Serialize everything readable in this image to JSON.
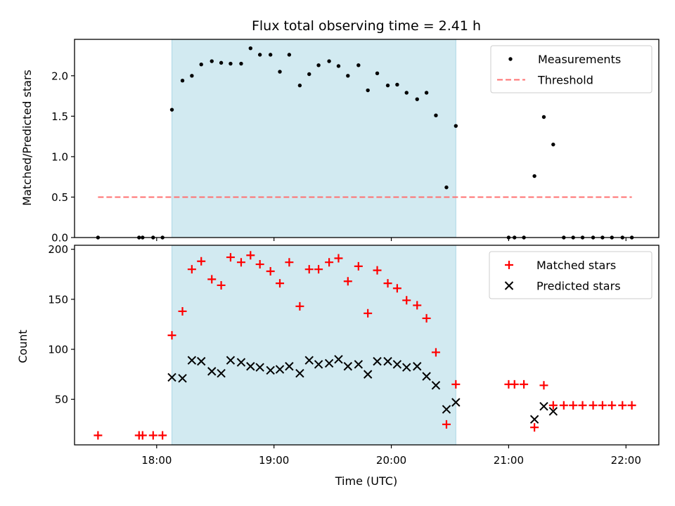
{
  "chart_data": [
    {
      "type": "scatter",
      "title": "Flux total observing time = 2.41 h",
      "xlabel": "",
      "ylabel": "Matched/Predicted stars",
      "x_axis": "time (UTC, hours)",
      "xlim": [
        17.3,
        22.28
      ],
      "ylim": [
        0,
        2.45
      ],
      "x_ticks": [
        18,
        19,
        20,
        21,
        22
      ],
      "y_ticks": [
        0,
        0.5,
        1.0,
        1.5,
        2.0
      ],
      "y_tick_labels": [
        "0.0",
        "0.5",
        "1.0",
        "1.5",
        "2.0"
      ],
      "observing_window": [
        18.13,
        20.55
      ],
      "shade_color": "#add8e6",
      "threshold": {
        "name": "Threshold",
        "value": 0.5,
        "x": [
          17.5,
          22.05
        ],
        "color": "#ff7070",
        "style": "dashed"
      },
      "legend_position": "top-right",
      "legend": [
        "Measurements",
        "Threshold"
      ],
      "series": [
        {
          "name": "Measurements",
          "color": "#000000",
          "marker": "dot",
          "x": [
            17.5,
            17.85,
            17.88,
            17.97,
            18.05,
            18.13,
            18.22,
            18.3,
            18.38,
            18.47,
            18.55,
            18.63,
            18.72,
            18.8,
            18.88,
            18.97,
            19.05,
            19.13,
            19.22,
            19.3,
            19.38,
            19.47,
            19.55,
            19.63,
            19.72,
            19.8,
            19.88,
            19.97,
            20.05,
            20.13,
            20.22,
            20.3,
            20.38,
            20.47,
            20.55,
            21.0,
            21.05,
            21.13,
            21.22,
            21.3,
            21.38,
            21.47,
            21.55,
            21.63,
            21.72,
            21.8,
            21.88,
            21.97,
            22.05
          ],
          "y": [
            0.0,
            0.0,
            0.0,
            0.0,
            0.0,
            1.58,
            1.94,
            2.0,
            2.14,
            2.18,
            2.16,
            2.15,
            2.15,
            2.34,
            2.26,
            2.26,
            2.05,
            2.26,
            1.88,
            2.02,
            2.13,
            2.18,
            2.12,
            2.0,
            2.13,
            1.82,
            2.03,
            1.88,
            1.89,
            1.79,
            1.71,
            1.79,
            1.51,
            0.62,
            1.38,
            0.0,
            0.0,
            0.0,
            0.76,
            1.49,
            1.15,
            0.0,
            0.0,
            0.0,
            0.0,
            0.0,
            0.0,
            0.0,
            0.0
          ]
        }
      ]
    },
    {
      "type": "scatter",
      "title": "",
      "xlabel": "Time (UTC)",
      "ylabel": "Count",
      "x_axis": "time (UTC, hours)",
      "xlim": [
        17.3,
        22.28
      ],
      "ylim": [
        4.5,
        204
      ],
      "x_ticks": [
        18,
        19,
        20,
        21,
        22
      ],
      "x_tick_labels": [
        "18:00",
        "19:00",
        "20:00",
        "21:00",
        "22:00"
      ],
      "y_ticks": [
        50,
        100,
        150,
        200
      ],
      "y_tick_labels": [
        "50",
        "100",
        "150",
        "200"
      ],
      "observing_window": [
        18.13,
        20.55
      ],
      "shade_color": "#add8e6",
      "legend_position": "top-right",
      "legend": [
        "Matched stars",
        "Predicted stars"
      ],
      "series": [
        {
          "name": "Matched stars",
          "color": "#ff0000",
          "marker": "plus",
          "x": [
            17.5,
            17.85,
            17.88,
            17.97,
            18.05,
            18.13,
            18.22,
            18.3,
            18.38,
            18.47,
            18.55,
            18.63,
            18.72,
            18.8,
            18.88,
            18.97,
            19.05,
            19.13,
            19.22,
            19.3,
            19.38,
            19.47,
            19.55,
            19.63,
            19.72,
            19.8,
            19.88,
            19.97,
            20.05,
            20.13,
            20.22,
            20.3,
            20.38,
            20.47,
            20.55,
            21.0,
            21.05,
            21.13,
            21.22,
            21.3,
            21.38,
            21.47,
            21.55,
            21.63,
            21.72,
            21.8,
            21.88,
            21.97,
            22.05
          ],
          "y": [
            14,
            14,
            14,
            14,
            14,
            114,
            138,
            180,
            188,
            170,
            164,
            192,
            187,
            194,
            185,
            178,
            166,
            187,
            143,
            180,
            180,
            187,
            191,
            168,
            183,
            136,
            179,
            166,
            161,
            149,
            144,
            131,
            97,
            25,
            65,
            65,
            65,
            65,
            22,
            64,
            44,
            44,
            44,
            44,
            44,
            44,
            44,
            44,
            44
          ]
        },
        {
          "name": "Predicted stars",
          "color": "#000000",
          "marker": "x",
          "x": [
            18.13,
            18.22,
            18.3,
            18.38,
            18.47,
            18.55,
            18.63,
            18.72,
            18.8,
            18.88,
            18.97,
            19.05,
            19.13,
            19.22,
            19.3,
            19.38,
            19.47,
            19.55,
            19.63,
            19.72,
            19.8,
            19.88,
            19.97,
            20.05,
            20.13,
            20.22,
            20.3,
            20.38,
            20.47,
            20.55,
            21.22,
            21.3,
            21.38
          ],
          "y": [
            72,
            71,
            89,
            88,
            78,
            76,
            89,
            87,
            83,
            82,
            79,
            80,
            83,
            76,
            89,
            85,
            86,
            90,
            83,
            85,
            75,
            88,
            88,
            85,
            82,
            83,
            73,
            64,
            40,
            47,
            30,
            43,
            38
          ]
        }
      ]
    }
  ]
}
